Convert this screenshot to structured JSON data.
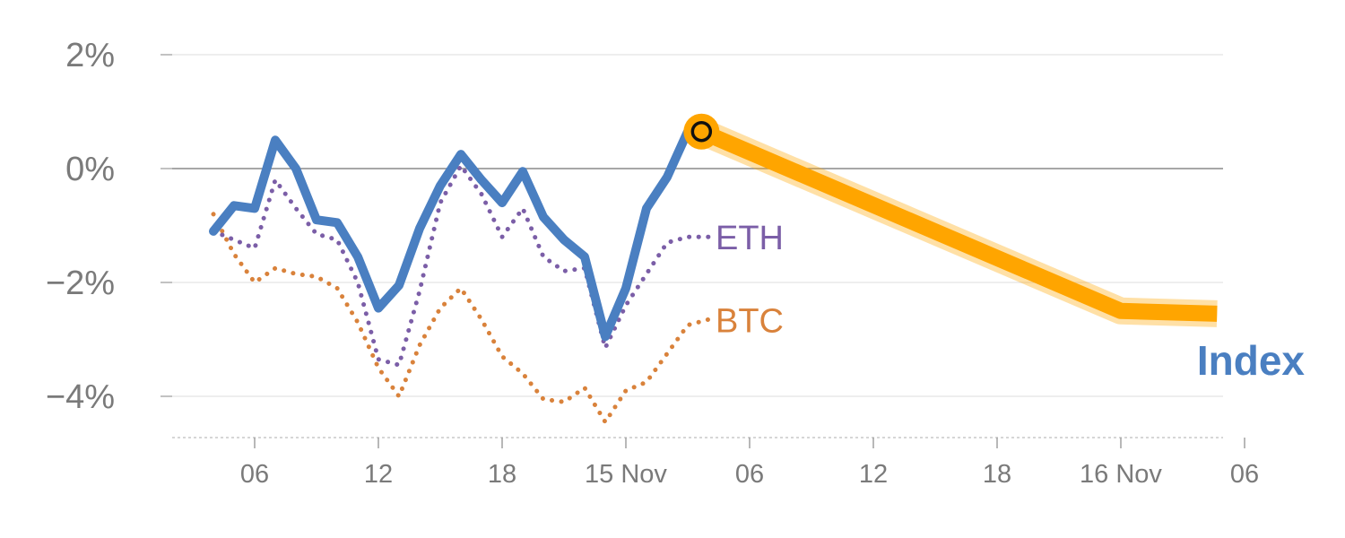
{
  "chart_data": {
    "type": "line",
    "title": "",
    "xlabel": "",
    "ylabel": "",
    "ylim": [
      -4.7,
      2.0
    ],
    "x_ticks": [
      "06",
      "12",
      "18",
      "15 Nov",
      "06",
      "12",
      "18",
      "16 Nov",
      "06"
    ],
    "y_ticks": [
      {
        "value": 2,
        "label": "2%"
      },
      {
        "value": 0,
        "label": "0%"
      },
      {
        "value": -2,
        "label": "−2%"
      },
      {
        "value": -4,
        "label": "−4%"
      }
    ],
    "grid": true,
    "zero_line": true,
    "series": [
      {
        "name": "Index",
        "label": "Index",
        "color": "#4a7fc1",
        "style": "solid",
        "x": [
          "14 Nov 04:00",
          "14 Nov 05:00",
          "14 Nov 06:00",
          "14 Nov 07:00",
          "14 Nov 08:00",
          "14 Nov 09:00",
          "14 Nov 10:00",
          "14 Nov 11:00",
          "14 Nov 12:00",
          "14 Nov 13:00",
          "14 Nov 14:00",
          "14 Nov 15:00",
          "14 Nov 16:00",
          "14 Nov 17:00",
          "14 Nov 18:00",
          "14 Nov 19:00",
          "14 Nov 20:00",
          "14 Nov 21:00",
          "14 Nov 22:00",
          "14 Nov 23:00",
          "15 Nov 00:00",
          "15 Nov 01:00",
          "15 Nov 02:00",
          "15 Nov 03:00"
        ],
        "values": [
          -1.1,
          -0.65,
          -0.7,
          0.5,
          0.0,
          -0.9,
          -0.95,
          -1.55,
          -2.45,
          -2.05,
          -1.05,
          -0.3,
          0.25,
          -0.2,
          -0.6,
          -0.05,
          -0.85,
          -1.25,
          -1.55,
          -2.95,
          -2.1,
          -0.7,
          -0.15,
          0.65
        ]
      },
      {
        "name": "ETH",
        "label": "ETH",
        "color": "#7b5ea7",
        "style": "dotted",
        "x": [
          "14 Nov 04:00",
          "14 Nov 05:00",
          "14 Nov 06:00",
          "14 Nov 07:00",
          "14 Nov 08:00",
          "14 Nov 09:00",
          "14 Nov 10:00",
          "14 Nov 11:00",
          "14 Nov 12:00",
          "14 Nov 13:00",
          "14 Nov 14:00",
          "14 Nov 15:00",
          "14 Nov 16:00",
          "14 Nov 17:00",
          "14 Nov 18:00",
          "14 Nov 19:00",
          "14 Nov 20:00",
          "14 Nov 21:00",
          "14 Nov 22:00",
          "14 Nov 23:00",
          "15 Nov 00:00",
          "15 Nov 01:00",
          "15 Nov 02:00",
          "15 Nov 03:00",
          "15 Nov 04:00"
        ],
        "values": [
          -1.1,
          -1.25,
          -1.4,
          -0.2,
          -0.7,
          -1.15,
          -1.25,
          -2.0,
          -3.35,
          -3.45,
          -2.15,
          -0.6,
          0.05,
          -0.45,
          -1.2,
          -0.7,
          -1.55,
          -1.8,
          -1.75,
          -3.15,
          -2.4,
          -1.85,
          -1.3,
          -1.2,
          -1.2
        ]
      },
      {
        "name": "BTC",
        "label": "BTC",
        "color": "#d9823b",
        "style": "dotted",
        "x": [
          "14 Nov 04:00",
          "14 Nov 05:00",
          "14 Nov 06:00",
          "14 Nov 07:00",
          "14 Nov 08:00",
          "14 Nov 09:00",
          "14 Nov 10:00",
          "14 Nov 11:00",
          "14 Nov 12:00",
          "14 Nov 13:00",
          "14 Nov 14:00",
          "14 Nov 15:00",
          "14 Nov 16:00",
          "14 Nov 17:00",
          "14 Nov 18:00",
          "14 Nov 19:00",
          "14 Nov 20:00",
          "14 Nov 21:00",
          "14 Nov 22:00",
          "14 Nov 23:00",
          "15 Nov 00:00",
          "15 Nov 01:00",
          "15 Nov 02:00",
          "15 Nov 03:00",
          "15 Nov 04:00"
        ],
        "values": [
          -0.8,
          -1.5,
          -2.0,
          -1.75,
          -1.85,
          -1.9,
          -2.1,
          -2.7,
          -3.5,
          -4.0,
          -3.1,
          -2.45,
          -2.1,
          -2.65,
          -3.3,
          -3.6,
          -4.05,
          -4.1,
          -3.85,
          -4.45,
          -3.9,
          -3.75,
          -3.25,
          -2.75,
          -2.65
        ]
      },
      {
        "name": "Index forecast",
        "color": "#ffa500",
        "style": "band",
        "x": [
          "15 Nov 03:40",
          "16 Nov 00:00",
          "16 Nov 04:40"
        ],
        "values": [
          0.65,
          -2.5,
          -2.55
        ]
      }
    ],
    "marker": {
      "x": "15 Nov 03:40",
      "value": 0.65,
      "color": "#ffa500"
    }
  },
  "labels": {
    "index": "Index",
    "eth": "ETH",
    "btc": "BTC"
  },
  "colors": {
    "index": "#4a7fc1",
    "eth": "#7b5ea7",
    "btc": "#d9823b",
    "forecast": "#ffa500",
    "grid": "#e3e3e3",
    "zero": "#8a8a8a",
    "tick_text": "#7a7a7a"
  }
}
